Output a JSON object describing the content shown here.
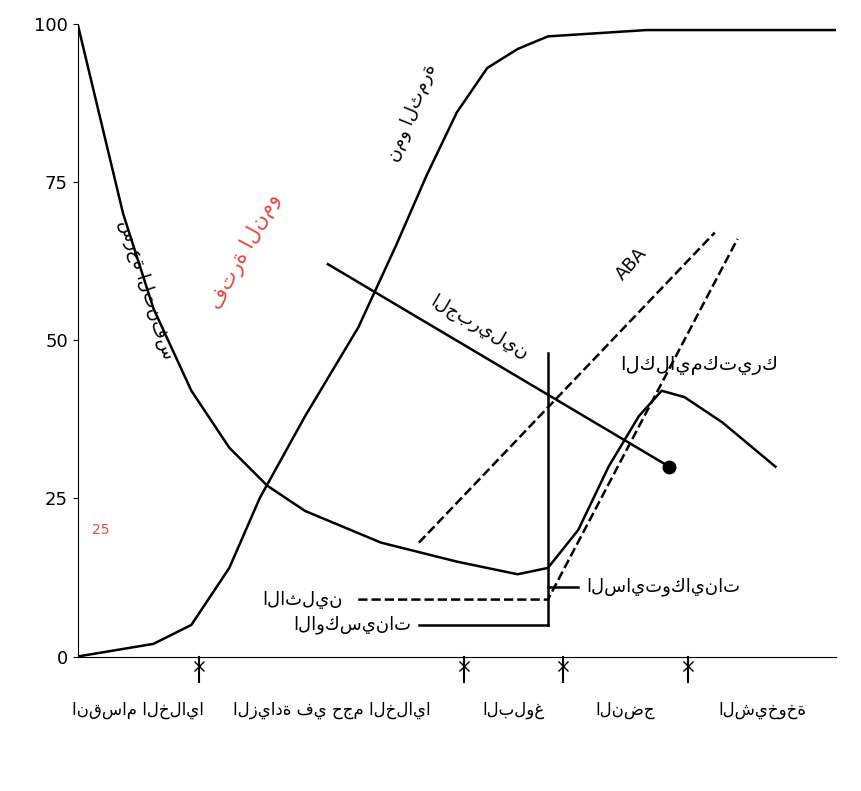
{
  "chart_data": {
    "type": "line",
    "xlim": [
      0,
      100
    ],
    "ylim": [
      0,
      100
    ],
    "yticks": [
      0,
      25,
      50,
      75,
      100
    ],
    "tick_labels": "y",
    "grid": false,
    "stages": [
      {
        "label": "انقسام الخلايا",
        "start": 0,
        "end": 16
      },
      {
        "label": "الزيادة في حجم الخلايا",
        "start": 16,
        "end": 51
      },
      {
        "label": "البلوغ",
        "start": 51,
        "end": 64
      },
      {
        "label": "النضج",
        "start": 64,
        "end": 80.5
      },
      {
        "label": "الشيخوخة",
        "start": 80.5,
        "end": 100
      }
    ],
    "series": [
      {
        "name": "سرعة التنفس",
        "color": "#000000",
        "line_style": "solid",
        "marker": "none",
        "x": [
          0,
          3,
          6,
          10,
          15,
          20,
          25,
          30,
          40,
          50,
          58,
          62,
          66,
          70,
          74,
          77,
          80,
          85,
          92
        ],
        "values": [
          100,
          85,
          70,
          55,
          42,
          33,
          27,
          23,
          18,
          15,
          13,
          14,
          20,
          30,
          38,
          42,
          41,
          37,
          30
        ]
      },
      {
        "name": "نمو الثمرة",
        "color": "#000000",
        "line_style": "solid",
        "marker": "none",
        "x": [
          0,
          5,
          10,
          15,
          20,
          24,
          30,
          37,
          42,
          46,
          50,
          54,
          58,
          62,
          75,
          100
        ],
        "values": [
          0,
          1,
          2,
          5,
          14,
          25,
          38,
          52,
          65,
          76,
          86,
          93,
          96,
          98,
          99,
          99
        ]
      },
      {
        "name": "الجبريلين",
        "color": "#000000",
        "line_style": "solid",
        "marker": "o",
        "x": [
          33,
          78
        ],
        "values": [
          62,
          30
        ]
      },
      {
        "name": "ABA",
        "color": "#000000",
        "line_style": "dashed",
        "marker": "none",
        "x": [
          45,
          84
        ],
        "values": [
          18,
          67
        ]
      },
      {
        "name": "الاثلين",
        "color": "#000000",
        "line_style": "dashed",
        "marker": "none",
        "x": [
          37,
          62,
          87
        ],
        "values": [
          9,
          9,
          66
        ]
      },
      {
        "name": "السايتوكاينات",
        "color": "#000000",
        "line_style": "solid",
        "marker": "none",
        "x": [
          62,
          66
        ],
        "values": [
          11,
          11
        ]
      },
      {
        "name": "الاوكسينات",
        "color": "#000000",
        "line_style": "solid",
        "marker": "none",
        "x": [
          45,
          62
        ],
        "values": [
          5,
          5
        ]
      }
    ],
    "vertical_line": {
      "x": 62,
      "ymin": 5,
      "ymax": 48,
      "color": "#000000"
    },
    "annotations": [
      {
        "text": "الكلايمكتيرك",
        "color": "#000000"
      },
      {
        "text": "فترة النمو",
        "color": "#e8473f"
      },
      {
        "text": "25",
        "color": "#e8473f"
      }
    ]
  }
}
